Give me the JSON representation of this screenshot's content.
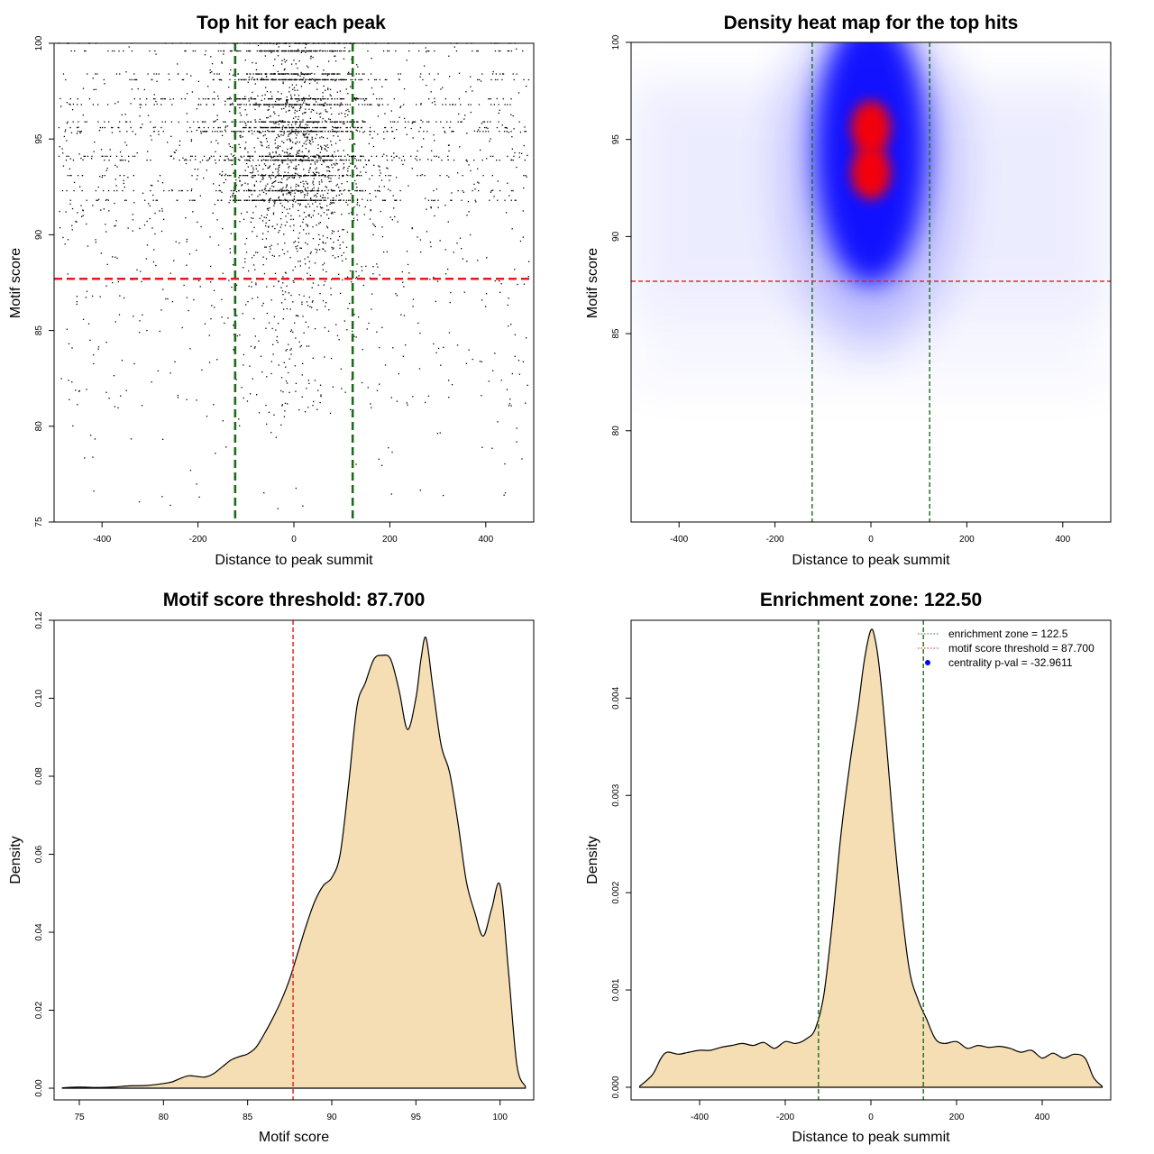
{
  "chart_data": [
    {
      "panel": "top-left",
      "type": "scatter",
      "title": "Top hit for each peak",
      "xlabel": "Distance to peak summit",
      "ylabel": "Motif score",
      "xlim": [
        -500,
        500
      ],
      "ylim": [
        75,
        100
      ],
      "xticks": [
        -400,
        -200,
        0,
        200,
        400
      ],
      "yticks": [
        75,
        80,
        85,
        90,
        95,
        100
      ],
      "hlines": [
        {
          "y": 87.7,
          "color": "#e41a1c"
        }
      ],
      "vlines": [
        {
          "x": -122.5,
          "color": "#1b6b1b"
        },
        {
          "x": 122.5,
          "color": "#1b6b1b"
        }
      ],
      "point_color": "#000000",
      "point_distribution": {
        "x_center": 0,
        "x_spread_sd": 75,
        "x_background_range": [
          -490,
          490
        ],
        "y_mode_levels": [
          100,
          99.6,
          98.4,
          98.1,
          97.1,
          96.8,
          95.9,
          95.6,
          95.4,
          94.1,
          93.9,
          93.1,
          92.3,
          91.8
        ],
        "y_min": 75.5,
        "y_max": 100
      }
    },
    {
      "panel": "top-right",
      "type": "heatmap",
      "title": "Density heat map for the top hits",
      "xlabel": "Distance to peak summit",
      "ylabel": "Motif score",
      "xlim": [
        -500,
        500
      ],
      "ylim": [
        75.3,
        100
      ],
      "xticks": [
        -400,
        -200,
        0,
        200,
        400
      ],
      "yticks": [
        80,
        85,
        90,
        95,
        100
      ],
      "hlines": [
        {
          "y": 87.7,
          "color": "#e41a1c"
        }
      ],
      "vlines": [
        {
          "x": -122.5,
          "color": "#1b6b1b"
        },
        {
          "x": 122.5,
          "color": "#1b6b1b"
        }
      ],
      "colors": [
        "#ffffff",
        "#0000ff",
        "#ff0000"
      ],
      "hotspots": [
        {
          "x": 0,
          "y": 95.6,
          "intensity": 1.0
        },
        {
          "x": 0,
          "y": 93.3,
          "intensity": 1.0
        }
      ]
    },
    {
      "panel": "bottom-left",
      "type": "area",
      "title": "Motif score threshold: 87.700",
      "xlabel": "Motif score",
      "ylabel": "Density",
      "xlim": [
        73.5,
        102
      ],
      "ylim": [
        -0.003,
        0.12
      ],
      "xticks": [
        75,
        80,
        85,
        90,
        95,
        100
      ],
      "yticks": [
        0.0,
        0.02,
        0.04,
        0.06,
        0.08,
        0.1,
        0.12
      ],
      "ytick_labels": [
        "0.00",
        "0.02",
        "0.04",
        "0.06",
        "0.08",
        "0.10",
        "0.12"
      ],
      "vlines": [
        {
          "x": 87.7,
          "color": "#e41a1c"
        }
      ],
      "fill": "#f5deb3",
      "x": [
        74,
        75,
        76,
        77,
        78,
        79,
        80,
        80.5,
        81,
        81.5,
        82,
        82.5,
        83,
        83.5,
        84,
        84.5,
        85,
        85.5,
        86,
        86.5,
        87,
        87.5,
        88,
        88.5,
        89,
        89.5,
        90,
        90.5,
        91,
        91.5,
        92,
        92.5,
        93,
        93.5,
        94,
        94.5,
        95,
        95.3,
        95.6,
        96,
        96.5,
        97,
        97.5,
        98,
        98.5,
        99,
        99.5,
        100,
        100.5,
        101,
        101.5
      ],
      "y": [
        0.0001,
        0.0003,
        0.0002,
        0.0003,
        0.0006,
        0.0007,
        0.0012,
        0.0016,
        0.0025,
        0.0032,
        0.003,
        0.0029,
        0.0038,
        0.0055,
        0.0072,
        0.0081,
        0.0088,
        0.0105,
        0.014,
        0.018,
        0.0225,
        0.028,
        0.035,
        0.042,
        0.048,
        0.052,
        0.054,
        0.06,
        0.078,
        0.098,
        0.104,
        0.11,
        0.111,
        0.11,
        0.102,
        0.092,
        0.1,
        0.11,
        0.1155,
        0.103,
        0.088,
        0.081,
        0.068,
        0.053,
        0.045,
        0.039,
        0.046,
        0.052,
        0.03,
        0.006,
        0.0005
      ]
    },
    {
      "panel": "bottom-right",
      "type": "area",
      "title": "Enrichment zone: 122.50",
      "xlabel": "Distance to peak summit",
      "ylabel": "Density",
      "xlim": [
        -560,
        560
      ],
      "ylim": [
        -0.00013,
        0.0048
      ],
      "xticks": [
        -400,
        -200,
        0,
        200,
        400
      ],
      "yticks": [
        0.0,
        0.001,
        0.002,
        0.003,
        0.004
      ],
      "ytick_labels": [
        "0.000",
        "0.001",
        "0.002",
        "0.003",
        "0.004"
      ],
      "vlines": [
        {
          "x": -122.5,
          "color": "#1b6b1b"
        },
        {
          "x": 122.5,
          "color": "#1b6b1b"
        }
      ],
      "fill": "#f5deb3",
      "legend": {
        "position": "top-right",
        "entries": [
          {
            "label": "enrichment zone = 122.5",
            "color": "#1b6b1b",
            "style": "dotted-line"
          },
          {
            "label": "motif score threshold = 87.700",
            "color": "#e41a1c",
            "style": "dotted-line"
          },
          {
            "label": "centrality p-val = -32.9611",
            "color": "#0000ff",
            "style": "point"
          }
        ]
      },
      "x": [
        -540,
        -510,
        -490,
        -475,
        -450,
        -425,
        -400,
        -375,
        -350,
        -325,
        -300,
        -275,
        -250,
        -225,
        -200,
        -175,
        -150,
        -130,
        -110,
        -90,
        -70,
        -50,
        -30,
        -15,
        0,
        10,
        20,
        35,
        50,
        70,
        90,
        110,
        130,
        150,
        170,
        200,
        225,
        250,
        275,
        300,
        325,
        350,
        375,
        400,
        425,
        450,
        475,
        500,
        520,
        540
      ],
      "y": [
        1e-05,
        0.00013,
        0.0003,
        0.00036,
        0.00034,
        0.00036,
        0.00038,
        0.00038,
        0.00041,
        0.00043,
        0.00045,
        0.00043,
        0.00046,
        0.0004,
        0.00047,
        0.00045,
        0.0005,
        0.0006,
        0.00095,
        0.0017,
        0.0026,
        0.0033,
        0.0039,
        0.0044,
        0.0047,
        0.0046,
        0.0043,
        0.0036,
        0.0028,
        0.0019,
        0.0012,
        0.0009,
        0.0007,
        0.0005,
        0.00045,
        0.00047,
        0.0004,
        0.00043,
        0.00041,
        0.00042,
        0.0004,
        0.00036,
        0.00038,
        0.0003,
        0.00035,
        0.0003,
        0.00034,
        0.0003,
        0.0001,
        1e-05
      ]
    }
  ]
}
